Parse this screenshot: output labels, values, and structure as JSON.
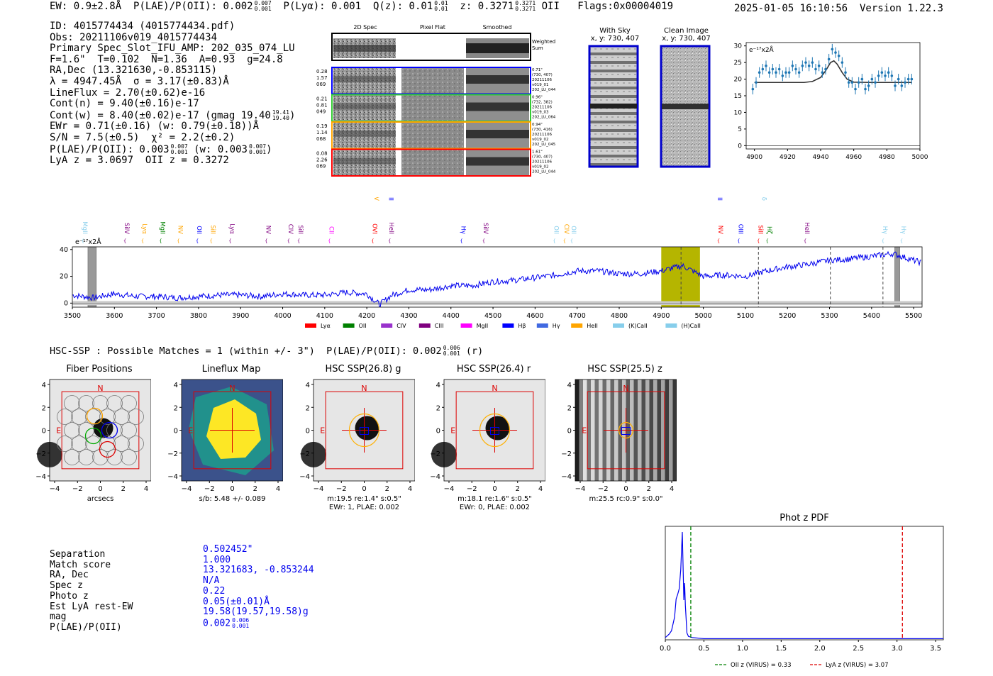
{
  "header": {
    "ew": "EW: 0.9±2.8Å",
    "plae_label": "P(LAE)/P(OII): 0.002",
    "plae_up": "0.007",
    "plae_dn": "0.001",
    "plya": "P(Lyα): 0.001",
    "qz_label": "Q(z): 0.01",
    "qz_up": "0.01",
    "qz_dn": "0.01",
    "z_label": "z: 0.3271",
    "z_up": "0.3271",
    "z_dn": "0.3271",
    "z_line": "OII",
    "flags": "Flags:0x00004019",
    "timestamp": "2025-01-05 16:10:56",
    "version": "Version 1.22.3"
  },
  "info": {
    "id": "ID: 4015774434 (4015774434.pdf)",
    "obs": "Obs: 20211106v019_4015774434",
    "primary": "Primary Spec_Slot_IFU_AMP: 202_035_074_LU",
    "params": "F=1.6\"  T=0.102  N=1.36  A=0.93  g=24.8",
    "radec": "RA,Dec (13.321630,-0.853115)",
    "lambda": "λ = 4947.45Å  σ = 3.17(±0.83)Å",
    "lineflux": "LineFlux = 2.70(±0.62)e-16",
    "contn": "Cont(n) = 9.40(±0.16)e-17",
    "contw": "Cont(w) = 8.40(±0.02)e-17 (gmag 19.40",
    "contw_up": "19.41",
    "contw_dn": "19.40",
    "ewr": "EWr = 0.71(±0.16) (w: 0.79(±0.18))Å",
    "sn": "S/N = 7.5(±0.5)  χ² = 2.2(±0.2)",
    "plae": "P(LAE)/P(OII): 0.003",
    "plae_up": "0.007",
    "plae_dn": "0.001",
    "plae_w": "(w: 0.003",
    "plae_w_up": "0.007",
    "plae_w_dn": "0.001",
    "lya": "LyA z = 3.0697  OII z = 0.3272"
  },
  "cutouts": {
    "col_2d": "2D Spec",
    "col_flat": "Pixel Flat",
    "col_smooth": "Smoothed",
    "weighted": "Weighted Sum",
    "rows": [
      {
        "left": [
          "0.28",
          "1.57",
          "069"
        ],
        "right": [
          "0.71\"",
          "(730, 407)",
          "20211106",
          "v019_01",
          "202_LU_044"
        ],
        "color": "#0000ff"
      },
      {
        "left": [
          "0.21",
          "0.81",
          "049"
        ],
        "right": [
          "0.96\"",
          "(732, 382)",
          "20211106",
          "v019_03",
          "202_LU_064"
        ],
        "color": "#33cc33"
      },
      {
        "left": [
          "0.19",
          "1.14",
          "068"
        ],
        "right": [
          "0.94\"",
          "(730, 416)",
          "20211106",
          "v019_02",
          "202_LU_045"
        ],
        "color": "#ffa500"
      },
      {
        "left": [
          "0.08",
          "2.26",
          "069"
        ],
        "right": [
          "1.61\"",
          "(730, 407)",
          "20211106",
          "v019_02",
          "202_LU_044"
        ],
        "color": "#ff0000"
      }
    ]
  },
  "sky": {
    "with_sky_title": "With Sky",
    "with_sky_xy": "x, y: 730, 407",
    "clean_title": "Clean Image",
    "clean_xy": "x, y: 730, 407"
  },
  "small_fit": {
    "unit": "e⁻¹⁷x2Å",
    "x_ticks": [
      "4900",
      "4920",
      "4940",
      "4960",
      "4980",
      "5000"
    ],
    "y_ticks": [
      "0",
      "5",
      "10",
      "15",
      "20",
      "25",
      "30"
    ]
  },
  "full_spec": {
    "unit": "e⁻¹⁷x2Å",
    "x_ticks": [
      "3500",
      "3600",
      "3700",
      "3800",
      "3900",
      "4000",
      "4100",
      "4200",
      "4300",
      "4400",
      "4500",
      "4600",
      "4700",
      "4800",
      "4900",
      "5000",
      "5100",
      "5200",
      "5300",
      "5400",
      "5500"
    ],
    "y_ticks": [
      "0",
      "20",
      "40"
    ],
    "lines_low": [
      {
        "label": "MgII",
        "w": 3525,
        "color": "#87ceeb"
      },
      {
        "label": "SiIV",
        "w": 3625,
        "color": "#800080"
      },
      {
        "label": "Lyα",
        "w": 3667,
        "color": "#ffa500"
      },
      {
        "label": "MgII",
        "w": 3710,
        "color": "#008000"
      },
      {
        "label": "NV",
        "w": 3752,
        "color": "#ffa500"
      },
      {
        "label": "OII",
        "w": 3797,
        "color": "#0000ff"
      },
      {
        "label": "SiII",
        "w": 3830,
        "color": "#ffa500"
      },
      {
        "label": "Lyα",
        "w": 3875,
        "color": "#800080"
      },
      {
        "label": "NV",
        "w": 3961,
        "color": "#800080"
      },
      {
        "label": "CIV",
        "w": 4014,
        "color": "#800080"
      },
      {
        "label": "SiII",
        "w": 4038,
        "color": "#800080"
      },
      {
        "label": "CII",
        "w": 4111,
        "color": "#ff00ff"
      },
      {
        "label": "OVI",
        "w": 4214,
        "color": "#ff0000"
      },
      {
        "label": "HeII",
        "w": 4254,
        "color": "#800080"
      },
      {
        "label": "Hγ",
        "w": 4425,
        "color": "#0000ff"
      },
      {
        "label": "SiIV",
        "w": 4478,
        "color": "#800080"
      },
      {
        "label": "OII",
        "w": 4646,
        "color": "#87ceeb"
      },
      {
        "label": "CIV",
        "w": 4670,
        "color": "#ffa500"
      },
      {
        "label": "OII",
        "w": 4687,
        "color": "#87ceeb"
      },
      {
        "label": "NV",
        "w": 5036,
        "color": "#ff0000"
      },
      {
        "label": "OIII",
        "w": 5084,
        "color": "#0000ff"
      },
      {
        "label": "SiII",
        "w": 5131,
        "color": "#ff0000"
      },
      {
        "label": "Hζ",
        "w": 5152,
        "color": "#008000"
      },
      {
        "label": "HeII",
        "w": 5242,
        "color": "#800080"
      },
      {
        "label": "Hγ",
        "w": 5427,
        "color": "#87ceeb"
      },
      {
        "label": "Hγ",
        "w": 5471,
        "color": "#87ceeb"
      }
    ],
    "lines_high": [
      {
        "label": "SiIV",
        "w": 4218,
        "color": "#ffa500"
      },
      {
        "label": "OII",
        "w": 4253,
        "color": "#0000ff"
      },
      {
        "label": "OIII",
        "w": 5034,
        "color": "#0000ff"
      },
      {
        "label": "Hδ",
        "w": 5140,
        "color": "#87ceeb"
      }
    ],
    "legend": [
      {
        "label": "Lyα",
        "color": "#ff0000"
      },
      {
        "label": "OII",
        "color": "#008000"
      },
      {
        "label": "CIV",
        "color": "#9932cc"
      },
      {
        "label": "CIII",
        "color": "#800080"
      },
      {
        "label": "MgII",
        "color": "#ff00ff"
      },
      {
        "label": "Hβ",
        "color": "#0000ff"
      },
      {
        "label": "Hγ",
        "color": "#4169e1"
      },
      {
        "label": "HeII",
        "color": "#ffa500"
      },
      {
        "label": "(K)CaII",
        "color": "#87ceeb"
      },
      {
        "label": "(H)CaII",
        "color": "#87ceeb"
      }
    ]
  },
  "hsc": {
    "line_label": "HSC-SSP : Possible Matches = 1 (within +/- 3\")  P(LAE)/P(OII): 0.002",
    "line_up": "0.006",
    "line_dn": "0.001",
    "line_band": "(r)",
    "panels": [
      {
        "title": "Fiber Positions",
        "caption1": "arcsecs",
        "caption2": ""
      },
      {
        "title": "Lineflux Map",
        "caption1": "s/b: 5.48 +/- 0.089",
        "caption2": ""
      },
      {
        "title": "HSC SSP(26.8) g",
        "caption1": "m:19.5   re:1.4\"   s:0.5\"",
        "caption2": "EWr: 1, PLAE: 0.002"
      },
      {
        "title": "HSC SSP(26.4) r",
        "caption1": "m:18.1   re:1.6\"   s:0.5\"",
        "caption2": "EWr: 0, PLAE: 0.002"
      },
      {
        "title": "HSC SSP(25.5) z",
        "caption1": "m:25.5  rc:0.9\"   s:0.0\"",
        "caption2": ""
      }
    ],
    "axis_ticks": [
      "−4",
      "−2",
      "0",
      "2",
      "4"
    ],
    "y_ticks": [
      "4",
      "2",
      "0",
      "−2",
      "−4"
    ],
    "north": "N",
    "east": "E"
  },
  "summary": {
    "labels": [
      "Separation",
      "Match score",
      "RA, Dec",
      "Spec z",
      "Photo z",
      "Est LyA rest-EW",
      "mag",
      "P(LAE)/P(OII)"
    ],
    "values": [
      "0.502452\"",
      "1.000",
      "13.321683, -0.853244",
      "N/A",
      "0.22",
      "0.05(±0.01)Å",
      "19.58(19.57,19.58)g",
      "0.002"
    ],
    "plae_up": "0.006",
    "plae_dn": "0.001"
  },
  "photz": {
    "title": "Phot z PDF",
    "x_ticks": [
      "0.0",
      "0.5",
      "1.0",
      "1.5",
      "2.0",
      "2.5",
      "3.0",
      "3.5"
    ],
    "legend_oii": "OII z (VIRUS) = 0.33",
    "legend_lya": "LyA z (VIRUS) = 3.07",
    "oii_z": 0.33,
    "lya_z": 3.07,
    "xlim": [
      0,
      3.6
    ]
  },
  "chart_data": [
    {
      "type": "line",
      "title": "",
      "xlabel": "",
      "ylabel": "e⁻¹⁷x2Å",
      "xlim": [
        3500,
        5520
      ],
      "ylim": [
        -3,
        42
      ],
      "series": [
        {
          "name": "spectrum",
          "x": [
            3500,
            3550,
            3600,
            3650,
            3700,
            3750,
            3800,
            3850,
            3900,
            3950,
            4000,
            4050,
            4100,
            4150,
            4200,
            4230,
            4260,
            4300,
            4350,
            4400,
            4450,
            4500,
            4550,
            4600,
            4650,
            4700,
            4750,
            4800,
            4850,
            4900,
            4950,
            5000,
            5050,
            5100,
            5150,
            5200,
            5250,
            5300,
            5350,
            5400,
            5450,
            5500,
            5520
          ],
          "values": [
            6,
            4,
            7,
            5,
            5,
            4,
            5,
            6,
            6,
            5,
            7,
            6,
            6,
            8,
            7,
            -1,
            6,
            10,
            10,
            13,
            13,
            16,
            17,
            19,
            21,
            24,
            24,
            22,
            22,
            24,
            28,
            20,
            21,
            20,
            24,
            27,
            29,
            32,
            33,
            35,
            37,
            32,
            30
          ]
        }
      ],
      "shaded_regions": [
        [
          4900,
          4992
        ]
      ],
      "vlines_dashed": [
        4947,
        5131,
        5302,
        5427
      ]
    },
    {
      "type": "scatter",
      "title": "",
      "ylabel": "e⁻¹⁷x2Å",
      "xlim": [
        4895,
        5000
      ],
      "ylim": [
        -1,
        31
      ],
      "series": [
        {
          "name": "data",
          "x": [
            4899,
            4901,
            4903,
            4905,
            4907,
            4909,
            4911,
            4913,
            4915,
            4917,
            4919,
            4921,
            4923,
            4925,
            4927,
            4929,
            4931,
            4933,
            4935,
            4937,
            4939,
            4941,
            4943,
            4945,
            4947,
            4949,
            4951,
            4953,
            4955,
            4957,
            4959,
            4961,
            4963,
            4965,
            4967,
            4969,
            4971,
            4973,
            4975,
            4977,
            4979,
            4981,
            4983,
            4985,
            4987,
            4989,
            4991,
            4993,
            4995
          ],
          "values": [
            17,
            19,
            22,
            23,
            24,
            22,
            23,
            22,
            23,
            21,
            22,
            22,
            24,
            23,
            22,
            24,
            25,
            24,
            25,
            23,
            24,
            22,
            23,
            26,
            29,
            28,
            27,
            25,
            22,
            19,
            19,
            17,
            19,
            20,
            17,
            18,
            20,
            19,
            21,
            22,
            21,
            22,
            21,
            18,
            20,
            18,
            19,
            20,
            20
          ]
        },
        {
          "name": "fit",
          "x": [
            4900,
            4930,
            4935,
            4940,
            4943,
            4946,
            4948,
            4950,
            4953,
            4956,
            4960,
            4970,
            4995
          ],
          "values": [
            19,
            19,
            19.3,
            20.5,
            22.5,
            25,
            25.5,
            24.5,
            22,
            20,
            19.1,
            19,
            19
          ]
        }
      ]
    },
    {
      "type": "line",
      "title": "Phot z PDF",
      "xlim": [
        0,
        3.6
      ],
      "ylim": [
        0,
        1
      ],
      "series": [
        {
          "name": "pdf",
          "x": [
            0,
            0.05,
            0.08,
            0.1,
            0.12,
            0.14,
            0.16,
            0.18,
            0.2,
            0.22,
            0.24,
            0.25,
            0.26,
            0.28,
            0.3,
            0.35,
            0.5,
            1.0,
            2.0,
            3.0,
            3.6
          ],
          "values": [
            0.02,
            0.05,
            0.08,
            0.14,
            0.2,
            0.36,
            0.4,
            0.45,
            0.62,
            0.95,
            0.35,
            0.5,
            0.3,
            0.06,
            0.03,
            0.02,
            0.01,
            0.01,
            0.01,
            0.01,
            0.01
          ]
        }
      ],
      "vlines": [
        {
          "x": 0.33,
          "label": "OII z (VIRUS) = 0.33",
          "color": "#008000"
        },
        {
          "x": 3.07,
          "label": "LyA z (VIRUS) = 3.07",
          "color": "#dd0000"
        }
      ]
    }
  ]
}
